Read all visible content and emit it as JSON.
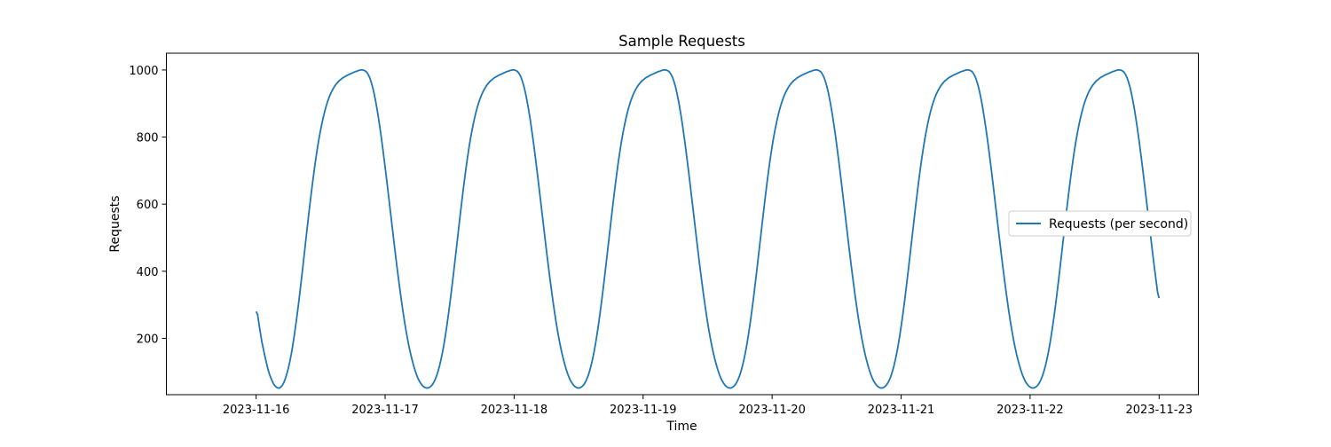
{
  "chart_data": {
    "type": "line",
    "title": "Sample Requests",
    "xlabel": "Time",
    "ylabel": "Requests",
    "x_range": [
      "2023-11-16T00:00",
      "2023-11-23T00:00"
    ],
    "xlim": [
      "2023-11-15T07:18",
      "2023-11-23T07:18"
    ],
    "ylim": [
      32,
      1050
    ],
    "x_ticks": [
      "2023-11-16",
      "2023-11-17",
      "2023-11-18",
      "2023-11-19",
      "2023-11-20",
      "2023-11-21",
      "2023-11-22",
      "2023-11-23"
    ],
    "y_ticks": [
      200,
      400,
      600,
      800,
      1000
    ],
    "legend_position": "center-right",
    "grid": false,
    "series": [
      {
        "name": "Requests (per second)",
        "color": "#1f77b4",
        "y": [
          280,
          271,
          242,
          214,
          188,
          168,
          147,
          128,
          110,
          95,
          83,
          73,
          64,
          58,
          54,
          52,
          52,
          55,
          60,
          68,
          79,
          93,
          109,
          128,
          150,
          175,
          203,
          233,
          265,
          299,
          335,
          372,
          410,
          449,
          488,
          527,
          565,
          602,
          638,
          672,
          705,
          736,
          765,
          791,
          815,
          837,
          857,
          875,
          891,
          905,
          917,
          928,
          937,
          945,
          952,
          958,
          963,
          968,
          971,
          975,
          978,
          980,
          983,
          985,
          987,
          989,
          991,
          993,
          995,
          996,
          998,
          999,
          1000,
          1000,
          999,
          997,
          993,
          986,
          977,
          964,
          949,
          930,
          908,
          884,
          857,
          828,
          797,
          764,
          730,
          695,
          659,
          622,
          585,
          548,
          511,
          474,
          438,
          403,
          369,
          336,
          305,
          275,
          247,
          221,
          197,
          175,
          155,
          137,
          121,
          106,
          93,
          82,
          73,
          66,
          60,
          56,
          53,
          52,
          52,
          54,
          57,
          62,
          69,
          78,
          89,
          103,
          119,
          138,
          159,
          183,
          210,
          239,
          270,
          303,
          338,
          374,
          411,
          449,
          487,
          525,
          563,
          600,
          636,
          671,
          704,
          735,
          764,
          791,
          815,
          837,
          857,
          875,
          891,
          905,
          917,
          928,
          937,
          945,
          952,
          958,
          963,
          968,
          971,
          975,
          978,
          980,
          983,
          985,
          987,
          989,
          991,
          993,
          995,
          996,
          998,
          999,
          1000,
          1000,
          999,
          997,
          993,
          986,
          977,
          964,
          949,
          930,
          908,
          884,
          857,
          828,
          797,
          764,
          730,
          695,
          659,
          622,
          585,
          548,
          511,
          474,
          438,
          403,
          369,
          336,
          305,
          275,
          247,
          221,
          197,
          175,
          155,
          137,
          121,
          106,
          93,
          82,
          73,
          66,
          60,
          56,
          53,
          52,
          52,
          54,
          57,
          62,
          69,
          78,
          89,
          103,
          119,
          138,
          159,
          183,
          210,
          239,
          270,
          303,
          338,
          374,
          411,
          449,
          487,
          525,
          563,
          600,
          636,
          671,
          704,
          735,
          764,
          791,
          815,
          837,
          857,
          875,
          891,
          905,
          917,
          928,
          937,
          945,
          952,
          958,
          963,
          968,
          971,
          975,
          978,
          980,
          983,
          985,
          987,
          989,
          991,
          993,
          995,
          996,
          998,
          999,
          1000,
          1000,
          999,
          997,
          993,
          986,
          977,
          964,
          949,
          930,
          908,
          884,
          857,
          828,
          797,
          764,
          730,
          695,
          659,
          622,
          585,
          548,
          511,
          474,
          438,
          403,
          369,
          336,
          305,
          275,
          247,
          221,
          197,
          175,
          155,
          137,
          121,
          106,
          93,
          82,
          73,
          66,
          60,
          56,
          53,
          52,
          52,
          54,
          57,
          62,
          69,
          78,
          89,
          103,
          119,
          138,
          159,
          183,
          210,
          239,
          270,
          303,
          338,
          374,
          411,
          449,
          487,
          525,
          563,
          600,
          636,
          671,
          704,
          735,
          764,
          791,
          815,
          837,
          857,
          875,
          891,
          905,
          917,
          928,
          937,
          945,
          952,
          958,
          963,
          968,
          971,
          975,
          978,
          980,
          983,
          985,
          987,
          989,
          991,
          993,
          995,
          996,
          998,
          999,
          1000,
          1000,
          999,
          997,
          993,
          986,
          977,
          964,
          949,
          930,
          908,
          884,
          857,
          828,
          797,
          764,
          730,
          695,
          659,
          622,
          585,
          548,
          511,
          474,
          438,
          403,
          369,
          336,
          305,
          275,
          247,
          221,
          197,
          175,
          155,
          137,
          121,
          106,
          93,
          82,
          73,
          66,
          60,
          56,
          53,
          52,
          52,
          54,
          57,
          62,
          69,
          78,
          89,
          103,
          119,
          138,
          159,
          183,
          210,
          239,
          270,
          303,
          338,
          374,
          411,
          449,
          487,
          525,
          563,
          600,
          636,
          671,
          704,
          735,
          764,
          791,
          815,
          837,
          857,
          875,
          891,
          905,
          917,
          928,
          937,
          945,
          952,
          958,
          963,
          968,
          971,
          975,
          978,
          980,
          983,
          985,
          987,
          989,
          991,
          993,
          995,
          996,
          998,
          999,
          1000,
          1000,
          999,
          997,
          993,
          986,
          977,
          964,
          949,
          930,
          908,
          884,
          857,
          828,
          797,
          764,
          730,
          695,
          659,
          622,
          585,
          548,
          511,
          474,
          438,
          403,
          369,
          336,
          305,
          275,
          247,
          221,
          197,
          175,
          155,
          137,
          121,
          106,
          93,
          82,
          73,
          66,
          60,
          56,
          53,
          52,
          52,
          54,
          57,
          62,
          69,
          78,
          89,
          103,
          119,
          138,
          159,
          183,
          210,
          239,
          270,
          303,
          338,
          374,
          411,
          449,
          487,
          525,
          563,
          600,
          636,
          671,
          704,
          735,
          764,
          791,
          815,
          837,
          857,
          875,
          891,
          905,
          917,
          928,
          937,
          945,
          952,
          958,
          963,
          968,
          971,
          975,
          978,
          980,
          983,
          985,
          987,
          989,
          991,
          993,
          995,
          996,
          998,
          999,
          1000,
          1000,
          999,
          997,
          993,
          986,
          977,
          964,
          949,
          930,
          908,
          884,
          857,
          828,
          797,
          764,
          730,
          695,
          659,
          622,
          585,
          548,
          511,
          474,
          438,
          403,
          369,
          336,
          320
        ]
      }
    ]
  }
}
